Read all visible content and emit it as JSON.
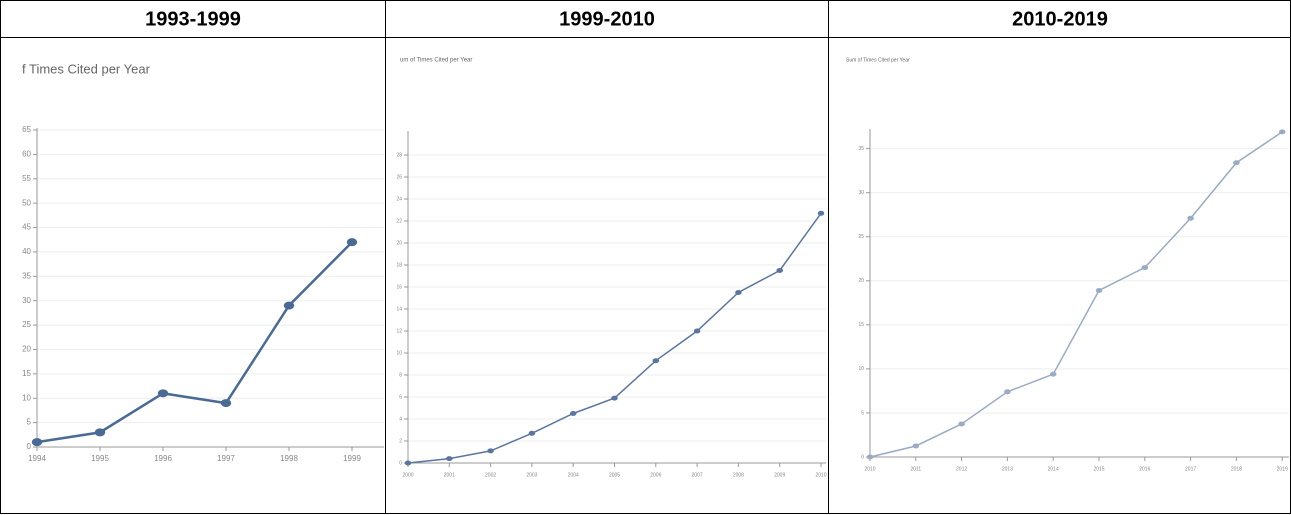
{
  "table": {
    "headers": [
      "1993-1999",
      "1999-2010",
      "2010-2019"
    ]
  },
  "chart_data": [
    {
      "type": "line",
      "title": "f Times Cited per Year",
      "color": "#4a6a96",
      "categories": [
        "1994",
        "1995",
        "1996",
        "1997",
        "1998",
        "1999"
      ],
      "values": [
        1,
        3,
        11,
        9,
        29,
        42
      ],
      "ylim": [
        0,
        65
      ],
      "yticks": [
        0,
        5,
        10,
        15,
        20,
        25,
        30,
        35,
        40,
        45,
        50,
        55,
        60,
        65
      ],
      "grid": true
    },
    {
      "type": "line",
      "title": "um of Times Cited per Year",
      "color": "#5a76a0",
      "categories": [
        "2000",
        "2001",
        "2002",
        "2003",
        "2004",
        "2005",
        "2006",
        "2007",
        "2008",
        "2009",
        "2010"
      ],
      "values": [
        0,
        0.4,
        1.1,
        2.7,
        4.5,
        5.9,
        9.3,
        12.0,
        15.5,
        17.5,
        22.7
      ],
      "ylim": [
        0,
        30
      ],
      "yticks": [
        0,
        2,
        4,
        6,
        8,
        10,
        12,
        14,
        16,
        18,
        20,
        22,
        24,
        26,
        28
      ],
      "grid": true
    },
    {
      "type": "line",
      "title": "Sum of Times Cited per Year",
      "color": "#9aabc4",
      "categories": [
        "2010",
        "2011",
        "2012",
        "2013",
        "2014",
        "2015",
        "2016",
        "2017",
        "2018",
        "2019"
      ],
      "values": [
        0,
        1.25,
        3.75,
        7.4,
        9.4,
        18.9,
        21.5,
        27.1,
        33.4,
        36.9
      ],
      "ylim": [
        0,
        37
      ],
      "yticks": [
        0,
        5,
        10,
        15,
        20,
        25,
        30,
        35
      ],
      "grid": true
    }
  ]
}
